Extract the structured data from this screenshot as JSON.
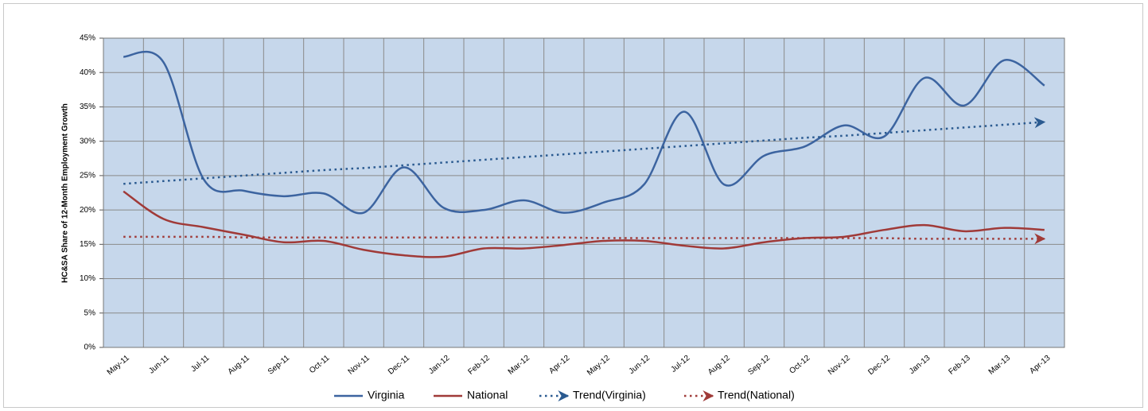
{
  "chart_data": {
    "type": "line",
    "y_label": "HC&SA Share of 12-Month Employment Growth",
    "categories": [
      "May-11",
      "Jun-11",
      "Jul-11",
      "Aug-11",
      "Sep-11",
      "Oct-11",
      "Nov-11",
      "Dec-11",
      "Jan-12",
      "Feb-12",
      "Mar-12",
      "Apr-12",
      "May-12",
      "Jun-12",
      "Jul-12",
      "Aug-12",
      "Sep-12",
      "Oct-12",
      "Nov-12",
      "Dec-12",
      "Jan-13",
      "Feb-13",
      "Mar-13",
      "Apr-13"
    ],
    "series": [
      {
        "name": "Virginia",
        "color": "#3c64a0",
        "dash": "solid",
        "arrow": false,
        "values": [
          42.3,
          41.5,
          24.5,
          22.8,
          22.0,
          22.4,
          19.6,
          26.2,
          20.3,
          20.0,
          21.4,
          19.6,
          21.1,
          23.7,
          34.3,
          23.7,
          27.9,
          29.2,
          32.3,
          30.7,
          39.2,
          35.2,
          41.8,
          38.1
        ]
      },
      {
        "name": "National",
        "color": "#a03a38",
        "dash": "solid",
        "arrow": false,
        "values": [
          22.7,
          18.7,
          17.5,
          16.4,
          15.3,
          15.5,
          14.2,
          13.4,
          13.2,
          14.4,
          14.4,
          14.9,
          15.5,
          15.5,
          14.8,
          14.4,
          15.3,
          15.9,
          16.1,
          17.1,
          17.8,
          16.9,
          17.4,
          17.1
        ]
      },
      {
        "name": "Trend(Virginia)",
        "color": "#2a5a90",
        "dash": "dotted",
        "arrow": true,
        "values": [
          23.8,
          24.2,
          24.6,
          25.0,
          25.4,
          25.8,
          26.1,
          26.5,
          26.9,
          27.3,
          27.7,
          28.1,
          28.5,
          28.9,
          29.3,
          29.7,
          30.1,
          30.5,
          30.8,
          31.2,
          31.6,
          32.0,
          32.4,
          32.8
        ]
      },
      {
        "name": "Trend(National)",
        "color": "#a03a38",
        "dash": "dotted",
        "arrow": true,
        "values": [
          16.1,
          16.1,
          16.1,
          16.0,
          16.0,
          16.0,
          16.0,
          16.0,
          16.0,
          16.0,
          16.0,
          16.0,
          15.9,
          15.9,
          15.9,
          15.9,
          15.9,
          15.9,
          15.9,
          15.9,
          15.8,
          15.8,
          15.8,
          15.8
        ]
      }
    ],
    "ylim": [
      0,
      45
    ],
    "yticks": [
      {
        "value": 0,
        "label": "0%"
      },
      {
        "value": 5,
        "label": "5%"
      },
      {
        "value": 10,
        "label": "10%"
      },
      {
        "value": 15,
        "label": "15%"
      },
      {
        "value": 20,
        "label": "20%"
      },
      {
        "value": 25,
        "label": "25%"
      },
      {
        "value": 30,
        "label": "30%"
      },
      {
        "value": 35,
        "label": "35%"
      },
      {
        "value": 40,
        "label": "40%"
      },
      {
        "value": 45,
        "label": "45%"
      }
    ],
    "grid": true,
    "legend": "bottom",
    "background": "#c6d7eb"
  }
}
